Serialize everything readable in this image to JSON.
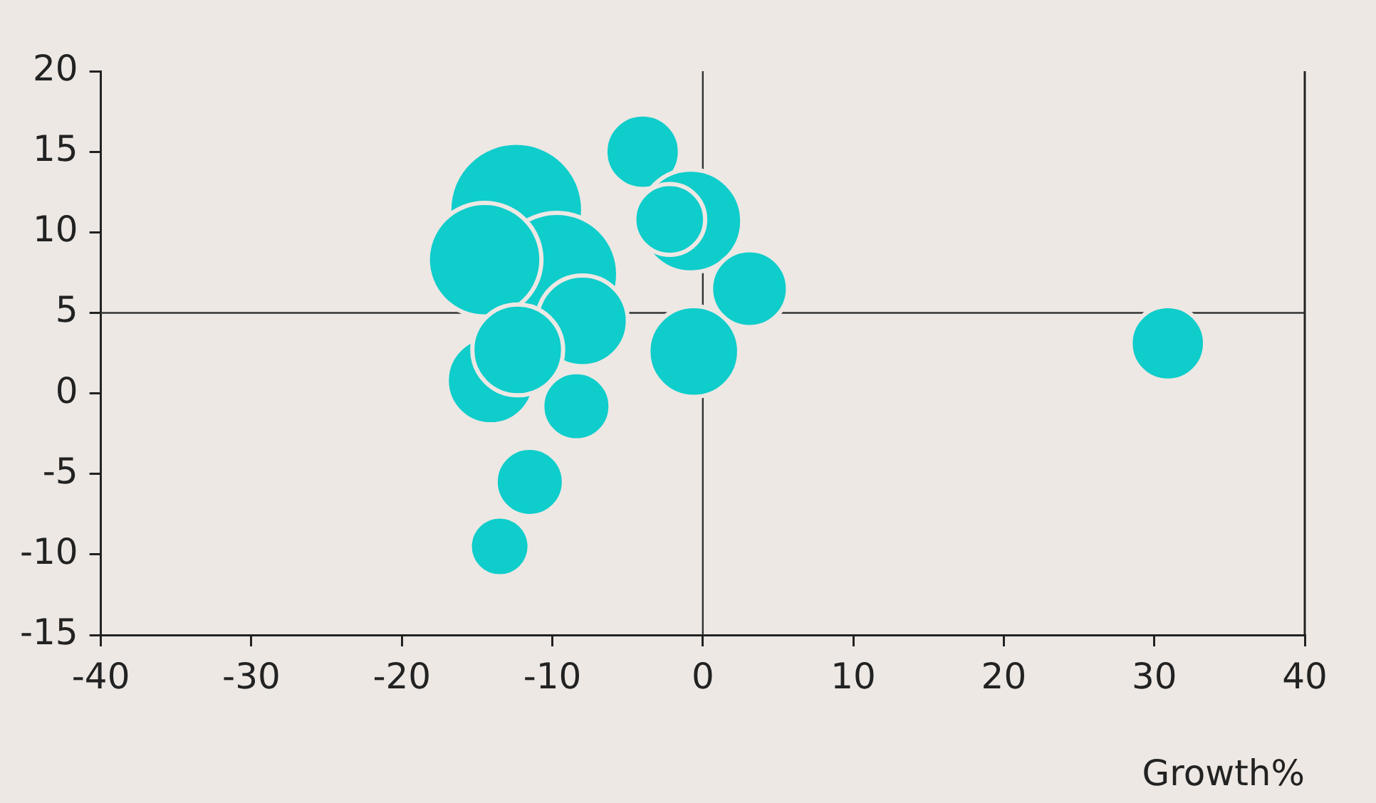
{
  "chart_data": {
    "type": "bubble",
    "xlabel": "Growth%",
    "xlim": [
      -40,
      40
    ],
    "xticks": [
      -40,
      -30,
      -20,
      -10,
      0,
      10,
      20,
      30,
      40
    ],
    "ylim": [
      -15,
      20
    ],
    "yticks": [
      -15,
      -10,
      -5,
      0,
      5,
      10,
      15,
      20
    ],
    "grid": false,
    "legend": false,
    "ref_lines": [
      {
        "axis": "x",
        "value": 0,
        "color": "#333333"
      },
      {
        "axis": "y",
        "value": 5,
        "color": "#333333"
      }
    ],
    "series": [
      {
        "color": "#0ecdcb",
        "x": [
          -12.4,
          -9.7,
          -14.5,
          -8.0,
          -14.1,
          -12.3,
          -8.4,
          -11.5,
          -13.5,
          -4.0,
          -0.8,
          -2.2,
          -0.6,
          3.1,
          30.9
        ],
        "values": [
          11.4,
          7.4,
          8.3,
          4.5,
          0.8,
          2.7,
          -0.8,
          -5.5,
          -9.5,
          15.0,
          10.7,
          10.8,
          2.6,
          6.5,
          3.1
        ],
        "sizes": [
          1,
          0.84,
          0.72,
          0.46,
          0.43,
          0.46,
          0.26,
          0.26,
          0.2,
          0.31,
          0.59,
          0.28,
          0.46,
          0.33,
          0.31
        ]
      }
    ]
  }
}
